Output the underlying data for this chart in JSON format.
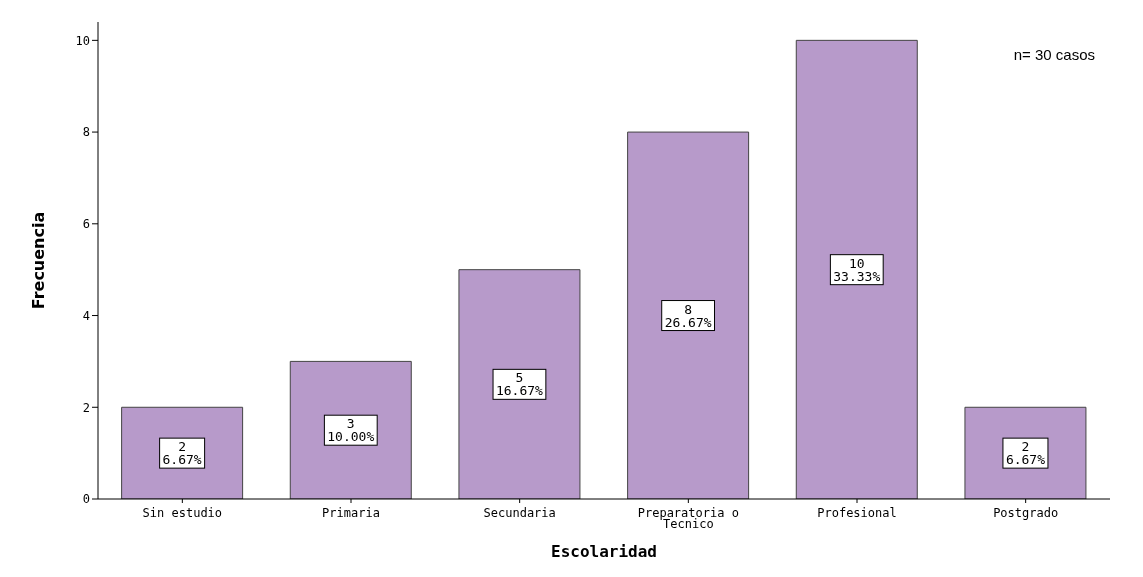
{
  "chart_data": {
    "type": "bar",
    "xlabel": "Escolaridad",
    "ylabel": "Frecuencia",
    "categories": [
      "Sin estudio",
      "Primaria",
      "Secundaria",
      "Preparatoria o Tecnico",
      "Profesional",
      "Postgrado"
    ],
    "values": [
      2,
      3,
      5,
      8,
      10,
      2
    ],
    "value_labels": [
      "2\n6.67%",
      "3\n10.00%",
      "5\n16.67%",
      "8\n26.67%",
      "10\n33.33%",
      "2\n6.67%"
    ],
    "color": "#b79aca",
    "ylim": [
      0,
      10.4
    ],
    "yticks": [
      0,
      2,
      4,
      6,
      8,
      10
    ],
    "grid": false,
    "legend": false,
    "annotations": [
      "n= 30 casos"
    ]
  }
}
